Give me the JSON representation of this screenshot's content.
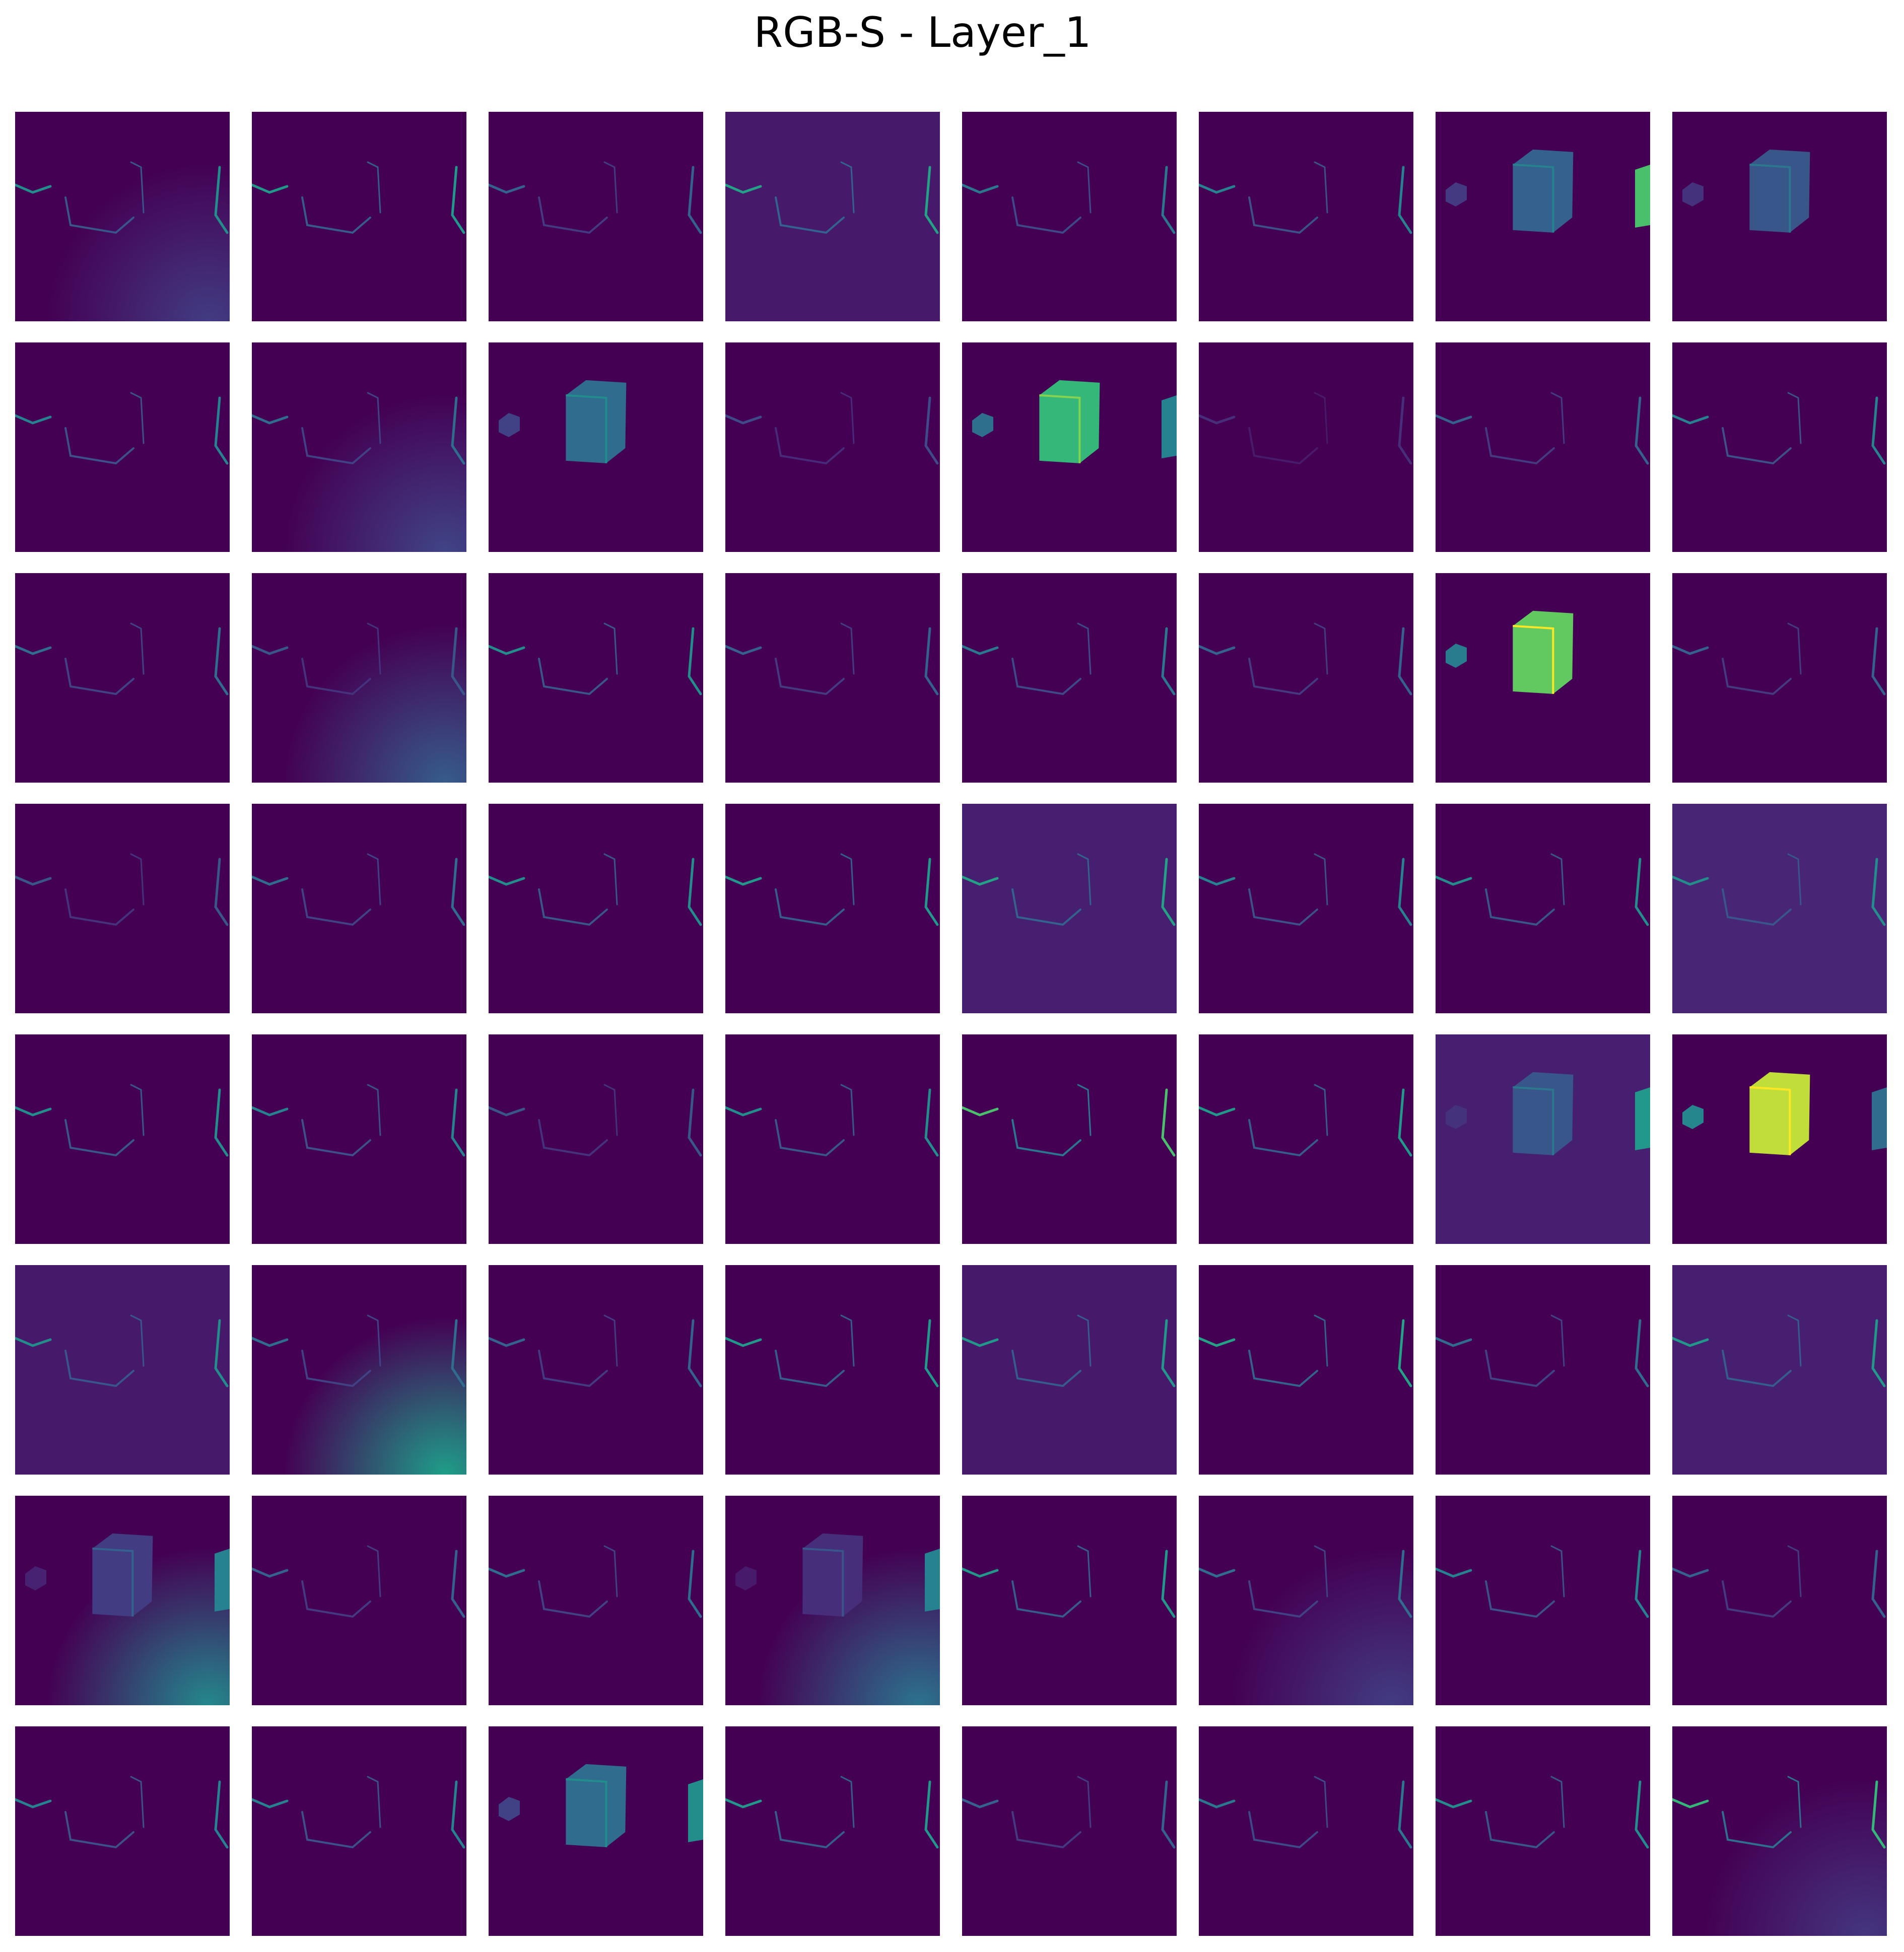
{
  "figure": {
    "title": "RGB-S - Layer_1",
    "grid_rows": 8,
    "grid_cols": 8,
    "colormap": "viridis",
    "colors": {
      "background": "#440154",
      "low": "#482878",
      "mid_low": "#3e4a89",
      "mid": "#31688e",
      "teal": "#26828e",
      "green_teal": "#1f9e89",
      "green": "#35b779",
      "yellow_green": "#6ece58",
      "yellow": "#b5de2b",
      "bright": "#fde725"
    }
  },
  "feature_maps": [
    {
      "kind": "edges",
      "intensity": 0.55,
      "floor": 0.12
    },
    {
      "kind": "edges",
      "intensity": 0.6
    },
    {
      "kind": "edges",
      "intensity": 0.35
    },
    {
      "kind": "edges",
      "intensity": 0.65,
      "haze": 0.2
    },
    {
      "kind": "edges",
      "intensity": 0.45
    },
    {
      "kind": "edges",
      "intensity": 0.5
    },
    {
      "kind": "cube",
      "intensity": 0.35,
      "side": 0.8
    },
    {
      "kind": "cube",
      "intensity": 0.3
    },
    {
      "kind": "edges",
      "intensity": 0.5
    },
    {
      "kind": "edges",
      "intensity": 0.4,
      "floor": 0.15
    },
    {
      "kind": "cube",
      "intensity": 0.4
    },
    {
      "kind": "edges",
      "intensity": 0.25
    },
    {
      "kind": "cube",
      "intensity": 0.75,
      "side": 0.5
    },
    {
      "kind": "edges",
      "intensity": 0.15
    },
    {
      "kind": "edges",
      "intensity": 0.35
    },
    {
      "kind": "edges",
      "intensity": 0.5
    },
    {
      "kind": "edges",
      "intensity": 0.4
    },
    {
      "kind": "edges",
      "intensity": 0.3,
      "floor": 0.25
    },
    {
      "kind": "edges",
      "intensity": 0.55
    },
    {
      "kind": "edges",
      "intensity": 0.35
    },
    {
      "kind": "edges",
      "intensity": 0.45
    },
    {
      "kind": "edges",
      "intensity": 0.35
    },
    {
      "kind": "cube",
      "intensity": 0.85
    },
    {
      "kind": "edges",
      "intensity": 0.35
    },
    {
      "kind": "edges",
      "intensity": 0.3
    },
    {
      "kind": "edges",
      "intensity": 0.4
    },
    {
      "kind": "edges",
      "intensity": 0.55
    },
    {
      "kind": "edges",
      "intensity": 0.6
    },
    {
      "kind": "edges",
      "intensity": 0.65,
      "haze": 0.25
    },
    {
      "kind": "edges",
      "intensity": 0.5
    },
    {
      "kind": "edges",
      "intensity": 0.55
    },
    {
      "kind": "edges",
      "intensity": 0.55,
      "haze": 0.3
    },
    {
      "kind": "edges",
      "intensity": 0.55
    },
    {
      "kind": "edges",
      "intensity": 0.5
    },
    {
      "kind": "edges",
      "intensity": 0.3
    },
    {
      "kind": "edges",
      "intensity": 0.55
    },
    {
      "kind": "edges",
      "intensity": 0.8
    },
    {
      "kind": "edges",
      "intensity": 0.6
    },
    {
      "kind": "cube",
      "intensity": 0.3,
      "haze": 0.25,
      "side": 0.6
    },
    {
      "kind": "cube",
      "intensity": 0.95,
      "side": 0.4
    },
    {
      "kind": "edges",
      "intensity": 0.55,
      "haze": 0.2
    },
    {
      "kind": "edges",
      "intensity": 0.4,
      "floor": 0.55
    },
    {
      "kind": "edges",
      "intensity": 0.35
    },
    {
      "kind": "edges",
      "intensity": 0.6
    },
    {
      "kind": "edges",
      "intensity": 0.6,
      "haze": 0.2
    },
    {
      "kind": "edges",
      "intensity": 0.65
    },
    {
      "kind": "edges",
      "intensity": 0.4
    },
    {
      "kind": "edges",
      "intensity": 0.6,
      "haze": 0.25
    },
    {
      "kind": "cube",
      "intensity": 0.2,
      "floor": 0.45,
      "side": 0.5
    },
    {
      "kind": "edges",
      "intensity": 0.35
    },
    {
      "kind": "edges",
      "intensity": 0.4
    },
    {
      "kind": "cube",
      "intensity": 0.15,
      "floor": 0.35,
      "side": 0.5
    },
    {
      "kind": "edges",
      "intensity": 0.6
    },
    {
      "kind": "edges",
      "intensity": 0.4,
      "floor": 0.12
    },
    {
      "kind": "edges",
      "intensity": 0.5
    },
    {
      "kind": "edges",
      "intensity": 0.35
    },
    {
      "kind": "edges",
      "intensity": 0.5
    },
    {
      "kind": "edges",
      "intensity": 0.5
    },
    {
      "kind": "cube",
      "intensity": 0.4,
      "side": 0.55
    },
    {
      "kind": "edges",
      "intensity": 0.6
    },
    {
      "kind": "edges",
      "intensity": 0.35
    },
    {
      "kind": "edges",
      "intensity": 0.45
    },
    {
      "kind": "edges",
      "intensity": 0.55
    },
    {
      "kind": "edges",
      "intensity": 0.75,
      "floor": 0.1
    }
  ]
}
